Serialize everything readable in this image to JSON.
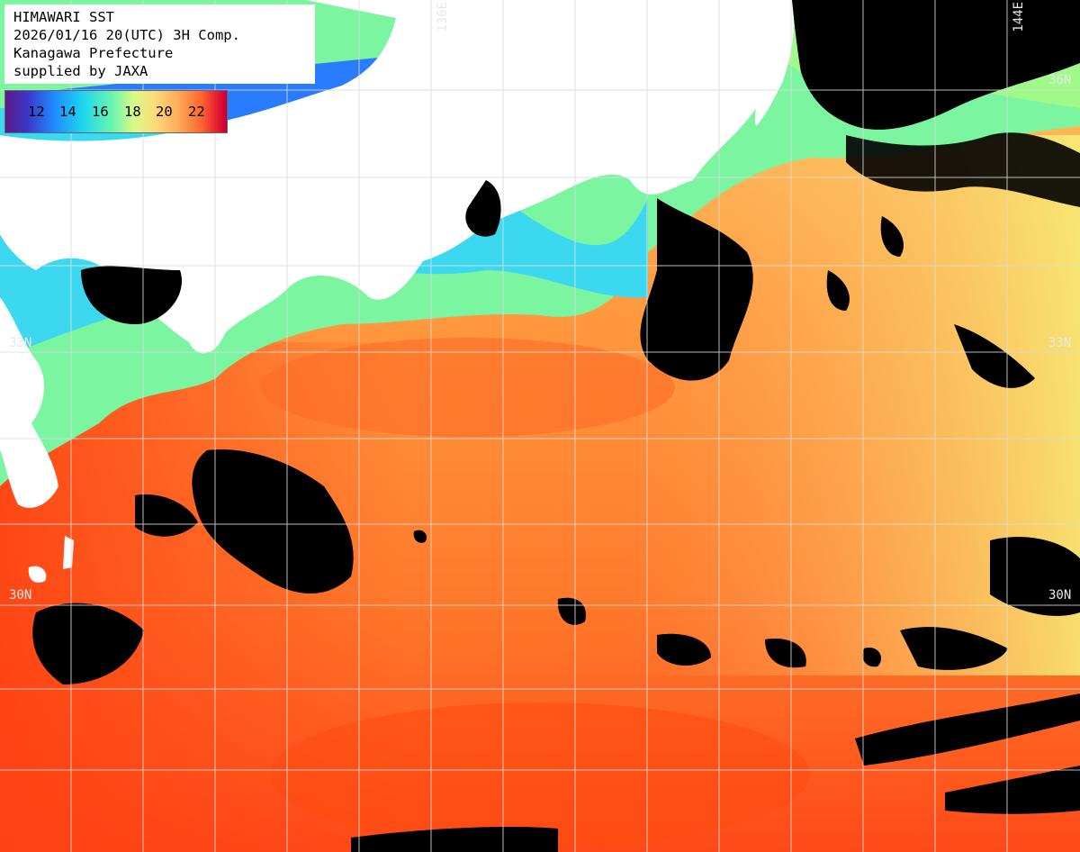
{
  "title": {
    "lines": [
      "HIMAWARI SST",
      "2026/01/16 20(UTC) 3H Comp.",
      "Kanagawa Prefecture",
      "supplied by JAXA"
    ]
  },
  "legend": {
    "labels": [
      "12",
      "14",
      "16",
      "18",
      "20",
      "22"
    ]
  },
  "graticule_labels": {
    "lon_136": "136E",
    "lon_144": "144E",
    "lat_36": "36N",
    "lat_33_left": "33N",
    "lat_33_right": "33N",
    "lat_30_left": "30N",
    "lat_30_right": "30N"
  },
  "colors": {
    "land": "#ffffff",
    "cloud": "#000000",
    "grid": "#dcdcdc",
    "warm_core": "#ff5a1e",
    "mid_warm": "#ffa04a",
    "cool": "#30e0ee",
    "coolest": "#2d6cff"
  }
}
